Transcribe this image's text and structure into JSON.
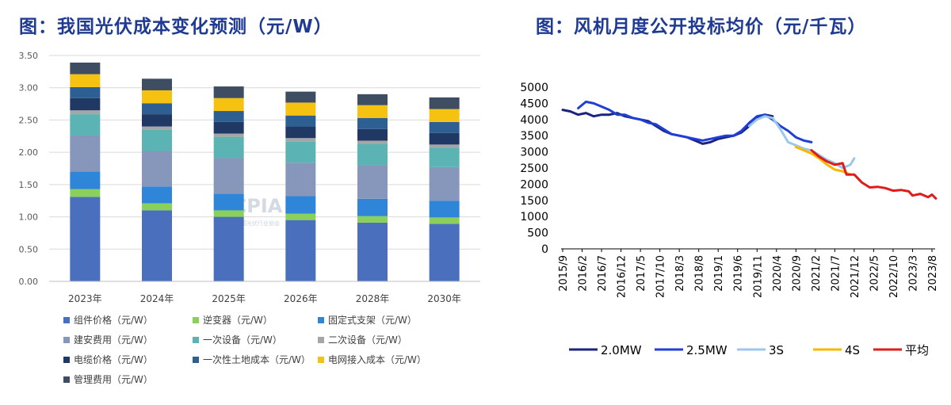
{
  "chart_data": [
    {
      "type": "bar",
      "stacked": true,
      "title": "图：我国光伏成本变化预测（元/W）",
      "watermark": "CPIA 中国光伏行业协会",
      "categories": [
        "2023年",
        "2024年",
        "2025年",
        "2026年",
        "2028年",
        "2030年"
      ],
      "ylim": [
        0,
        3.5
      ],
      "yticks": [
        "0.00",
        "0.50",
        "1.00",
        "1.50",
        "2.00",
        "2.50",
        "3.00",
        "3.50"
      ],
      "grid": true,
      "legend_position": "bottom",
      "series": [
        {
          "name": "组件价格（元/W）",
          "color": "#4a6fbd",
          "values": [
            1.31,
            1.1,
            1.0,
            0.95,
            0.91,
            0.89
          ]
        },
        {
          "name": "逆变器（元/W）",
          "color": "#8bd05a",
          "values": [
            0.12,
            0.11,
            0.1,
            0.1,
            0.1,
            0.1
          ]
        },
        {
          "name": "固定式支架（元/W）",
          "color": "#2f86d8",
          "values": [
            0.27,
            0.26,
            0.26,
            0.27,
            0.27,
            0.26
          ]
        },
        {
          "name": "建安费用（元/W）",
          "color": "#8697bb",
          "values": [
            0.56,
            0.55,
            0.55,
            0.52,
            0.52,
            0.52
          ]
        },
        {
          "name": "一次设备（元/W）",
          "color": "#5bb3b3",
          "values": [
            0.33,
            0.33,
            0.33,
            0.33,
            0.33,
            0.3
          ]
        },
        {
          "name": "二次设备（元/W）",
          "color": "#a6a6a6",
          "values": [
            0.06,
            0.05,
            0.05,
            0.05,
            0.05,
            0.05
          ]
        },
        {
          "name": "电缆价格（元/W）",
          "color": "#1f3864",
          "values": [
            0.19,
            0.19,
            0.18,
            0.18,
            0.18,
            0.18
          ]
        },
        {
          "name": "一次性土地成本（元/W）",
          "color": "#2e5f93",
          "values": [
            0.17,
            0.17,
            0.17,
            0.17,
            0.17,
            0.17
          ]
        },
        {
          "name": "电网接入成本（元/W）",
          "color": "#f5c211",
          "values": [
            0.2,
            0.2,
            0.2,
            0.2,
            0.2,
            0.2
          ]
        },
        {
          "name": "管理费用（元/W）",
          "color": "#3f4d63",
          "values": [
            0.18,
            0.18,
            0.18,
            0.17,
            0.17,
            0.18
          ]
        }
      ]
    },
    {
      "type": "line",
      "title": "图：风机月度公开投标均价（元/千瓦）",
      "ylim": [
        0,
        5000
      ],
      "yticks": [
        "0",
        "500",
        "1000",
        "1500",
        "2000",
        "2500",
        "3000",
        "3500",
        "4000",
        "4500",
        "5000"
      ],
      "xticks": [
        "2015/9",
        "2016/2",
        "2016/7",
        "2016/12",
        "2017/5",
        "2017/10",
        "2018/3",
        "2018/8",
        "2019/1",
        "2019/6",
        "2019/11",
        "2020/4",
        "2020/9",
        "2021/2",
        "2021/7",
        "2021/12",
        "2022/5",
        "2022/10",
        "2023/3",
        "2023/8"
      ],
      "grid": false,
      "legend_position": "bottom",
      "series": [
        {
          "name": "2.0MW",
          "color": "#1a237e",
          "dashed_segments": true,
          "points": [
            [
              "2015/9",
              4300
            ],
            [
              "2015/11",
              4250
            ],
            [
              "2016/1",
              4150
            ],
            [
              "2016/3",
              4200
            ],
            [
              "2016/5",
              4100
            ],
            [
              "2016/7",
              4150
            ],
            [
              "2016/9",
              4150
            ],
            [
              "2016/11",
              4200
            ],
            [
              "2017/1",
              4100
            ],
            [
              "2017/3",
              4050
            ],
            [
              "2017/5",
              4000
            ],
            [
              "2017/7",
              3950
            ],
            [
              "2017/9",
              3800
            ],
            [
              "2017/11",
              3650
            ],
            [
              "2018/1",
              3550
            ],
            [
              "2018/3",
              3500
            ],
            [
              "2018/5",
              3450
            ],
            [
              "2018/7",
              3350
            ],
            [
              "2018/9",
              3250
            ],
            [
              "2018/11",
              3300
            ],
            [
              "2019/1",
              3400
            ],
            [
              "2019/3",
              3450
            ],
            [
              "2019/5",
              3500
            ],
            [
              "2019/7",
              3600
            ],
            [
              "2019/9",
              3800
            ],
            [
              "2019/11",
              4050
            ],
            [
              "2020/1",
              4150
            ],
            [
              "2020/3",
              4100
            ]
          ]
        },
        {
          "name": "2.5MW",
          "color": "#1f3fd6",
          "points": [
            [
              "2016/1",
              4350
            ],
            [
              "2016/3",
              4550
            ],
            [
              "2016/5",
              4500
            ],
            [
              "2016/7",
              4400
            ],
            [
              "2016/9",
              4300
            ],
            [
              "2016/11",
              4150
            ],
            [
              "2017/1",
              4150
            ],
            [
              "2017/3",
              4050
            ],
            [
              "2017/5",
              4000
            ],
            [
              "2017/7",
              3900
            ],
            [
              "2017/9",
              3850
            ],
            [
              "2017/11",
              3700
            ],
            [
              "2018/1",
              3550
            ],
            [
              "2018/3",
              3500
            ],
            [
              "2018/9",
              3350
            ],
            [
              "2018/11",
              3400
            ],
            [
              "2019/1",
              3450
            ],
            [
              "2019/3",
              3500
            ],
            [
              "2019/5",
              3500
            ],
            [
              "2019/7",
              3650
            ],
            [
              "2019/9",
              3900
            ],
            [
              "2019/11",
              4100
            ],
            [
              "2020/1",
              4150
            ],
            [
              "2020/3",
              4000
            ],
            [
              "2020/5",
              3800
            ],
            [
              "2020/7",
              3650
            ],
            [
              "2020/9",
              3450
            ],
            [
              "2020/11",
              3350
            ],
            [
              "2021/1",
              3300
            ]
          ]
        },
        {
          "name": "3S",
          "color": "#9cc7ec",
          "points": [
            [
              "2019/9",
              3800
            ],
            [
              "2019/11",
              4000
            ],
            [
              "2020/1",
              4100
            ],
            [
              "2020/3",
              4050
            ],
            [
              "2020/5",
              3700
            ],
            [
              "2020/7",
              3300
            ],
            [
              "2020/9",
              3200
            ],
            [
              "2020/11",
              3100
            ],
            [
              "2021/1",
              3050
            ],
            [
              "2021/3",
              2900
            ],
            [
              "2021/5",
              2750
            ],
            [
              "2021/7",
              2650
            ],
            [
              "2021/9",
              2500
            ],
            [
              "2021/11",
              2600
            ],
            [
              "2021/12",
              2800
            ]
          ]
        },
        {
          "name": "4S",
          "color": "#f5b800",
          "points": [
            [
              "2020/9",
              3150
            ],
            [
              "2020/11",
              3050
            ],
            [
              "2021/1",
              2950
            ],
            [
              "2021/3",
              2800
            ],
            [
              "2021/5",
              2600
            ],
            [
              "2021/7",
              2450
            ],
            [
              "2021/9",
              2400
            ],
            [
              "2021/11",
              2300
            ]
          ]
        },
        {
          "name": "平均",
          "color": "#e01b1b",
          "points": [
            [
              "2021/1",
              3050
            ],
            [
              "2021/3",
              2850
            ],
            [
              "2021/5",
              2700
            ],
            [
              "2021/7",
              2600
            ],
            [
              "2021/9",
              2650
            ],
            [
              "2021/10",
              2300
            ],
            [
              "2021/12",
              2300
            ],
            [
              "2022/2",
              2050
            ],
            [
              "2022/4",
              1900
            ],
            [
              "2022/6",
              1920
            ],
            [
              "2022/8",
              1880
            ],
            [
              "2022/10",
              1800
            ],
            [
              "2022/12",
              1820
            ],
            [
              "2023/2",
              1780
            ],
            [
              "2023/3",
              1650
            ],
            [
              "2023/5",
              1700
            ],
            [
              "2023/7",
              1600
            ],
            [
              "2023/8",
              1680
            ],
            [
              "2023/9",
              1560
            ]
          ]
        }
      ]
    }
  ]
}
